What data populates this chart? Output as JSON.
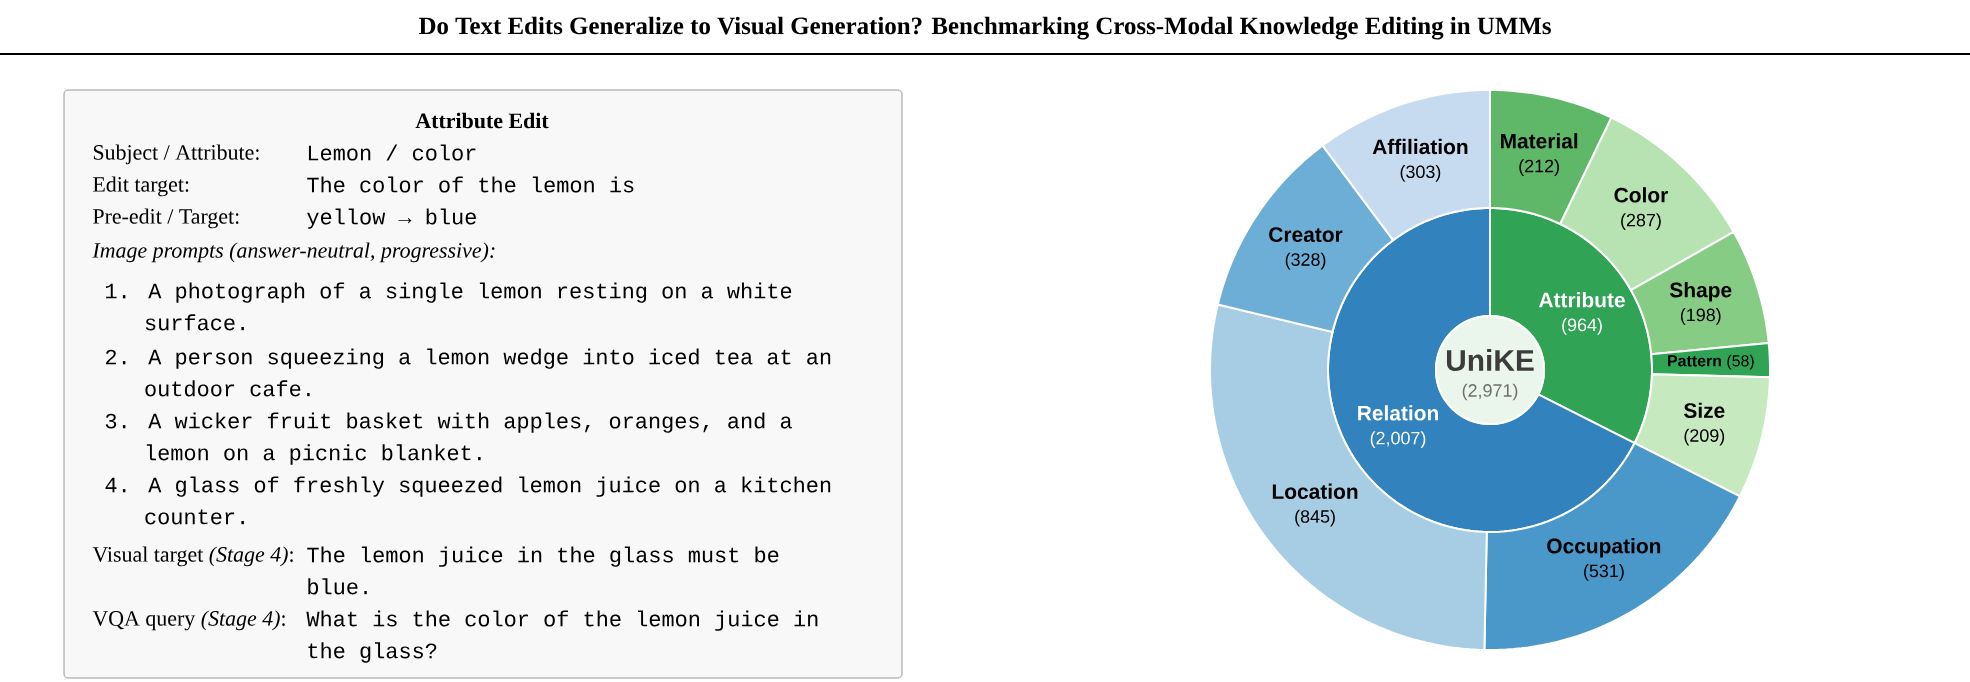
{
  "chart_data": [
    {
      "type": "other",
      "title": "Do Text Edits Generalize to Visual Generation? Benchmarking Cross-Modal Knowledge Editing in UMMs",
      "subtitle": "Attribute Edit",
      "annotations": [
        "Subject / Attribute:",
        "Lemon / color",
        "Edit target:",
        "The color of the lemon is",
        "Pre-edit / Target:",
        "yellow → blue",
        "Image prompts (answer-neutral, progressive):",
        "1. A photograph of a single lemon resting on a white surface.",
        "2. A person squeezing a lemon wedge into iced tea at an outdoor cafe.",
        "3. A wicker fruit basket with apples, oranges, and a lemon on a picnic blanket.",
        "4. A glass of freshly squeezed lemon juice on a kitchen counter.",
        "Visual target *(Stage 4)*:",
        "The lemon juice in the glass must be blue.",
        "VQA query *(Stage 4)*:",
        "What is the color of the lemon juice in the glass?"
      ]
    },
    {
      "type": "donut",
      "annotations": [
        "UniKE",
        "(2,971)"
      ],
      "categories": [
        "Attribute",
        "Relation"
      ],
      "values": [
        964,
        2007
      ],
      "colors": [
        "#31a354",
        "#3182bd"
      ],
      "value_labels": [
        "(964)",
        "(2,007)"
      ]
    },
    {
      "type": "donut",
      "categories": [
        "Material",
        "Color",
        "Shape",
        "Pattern",
        "Size",
        "Occupation",
        "Location",
        "Creator",
        "Affiliation"
      ],
      "values": [
        212,
        287,
        198,
        58,
        209,
        531,
        845,
        328,
        303
      ],
      "colors": [
        "#5fb868",
        "#b7e2b1",
        "#86cc85",
        "#31a354",
        "#c7e9c0",
        "#4a98c9",
        "#a6cde3",
        "#6caed6",
        "#c6dbef"
      ],
      "value_labels": [
        "(212)",
        "(287)",
        "(198)",
        "(58)",
        "(209)",
        "(531)",
        "(845)",
        "(328)",
        "(303)"
      ]
    }
  ]
}
